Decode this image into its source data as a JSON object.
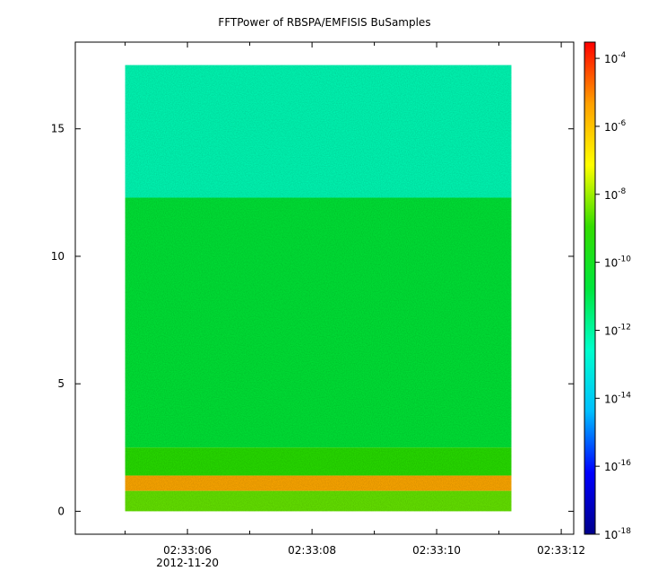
{
  "chart_data": {
    "type": "heatmap",
    "title": "FFTPower of RBSPA/EMFISIS  BuSamples",
    "xlabel": "",
    "ylabel": "",
    "x_ticks": [
      {
        "label": "02:33:06",
        "sub": "2012-11-20",
        "t": 6
      },
      {
        "label": "02:33:08",
        "sub": "",
        "t": 8
      },
      {
        "label": "02:33:10",
        "sub": "",
        "t": 10
      },
      {
        "label": "02:33:12",
        "sub": "",
        "t": 12
      }
    ],
    "x_minor_ticks": [
      5,
      7,
      9,
      11
    ],
    "xlim_seconds": [
      4.2,
      12.2
    ],
    "data_x_range_seconds": [
      5.0,
      11.2
    ],
    "y_ticks": [
      0,
      5,
      10,
      15
    ],
    "ylim": [
      -0.9,
      18.4
    ],
    "data_y_range": [
      0,
      17.5
    ],
    "colorbar": {
      "scale": "log",
      "range": [
        1e-18,
        0.0003
      ],
      "tick_labels": [
        {
          "base": "10",
          "exp": "-4",
          "value": -4
        },
        {
          "base": "10",
          "exp": "-6",
          "value": -6
        },
        {
          "base": "10",
          "exp": "-8",
          "value": -8
        },
        {
          "base": "10",
          "exp": "-10",
          "value": -10
        },
        {
          "base": "10",
          "exp": "-12",
          "value": -12
        },
        {
          "base": "10",
          "exp": "-14",
          "value": -14
        },
        {
          "base": "10",
          "exp": "-16",
          "value": -16
        },
        {
          "base": "10",
          "exp": "-18",
          "value": -18
        }
      ],
      "colors": [
        "#00008b",
        "#0000ff",
        "#00bfff",
        "#00ffcc",
        "#00e63c",
        "#33dd00",
        "#ffff00",
        "#ffa000",
        "#ff0000"
      ]
    },
    "bands": [
      {
        "y_range": [
          12.3,
          17.5
        ],
        "log_power": -12.3,
        "description": ""
      },
      {
        "y_range": [
          2.5,
          12.3
        ],
        "log_power": -10.6
      },
      {
        "y_range": [
          1.4,
          2.5
        ],
        "log_power": -9.3
      },
      {
        "y_range": [
          0.8,
          1.4
        ],
        "log_power": -5.5
      },
      {
        "y_range": [
          0,
          0.8
        ],
        "log_power": -8.5
      }
    ]
  }
}
